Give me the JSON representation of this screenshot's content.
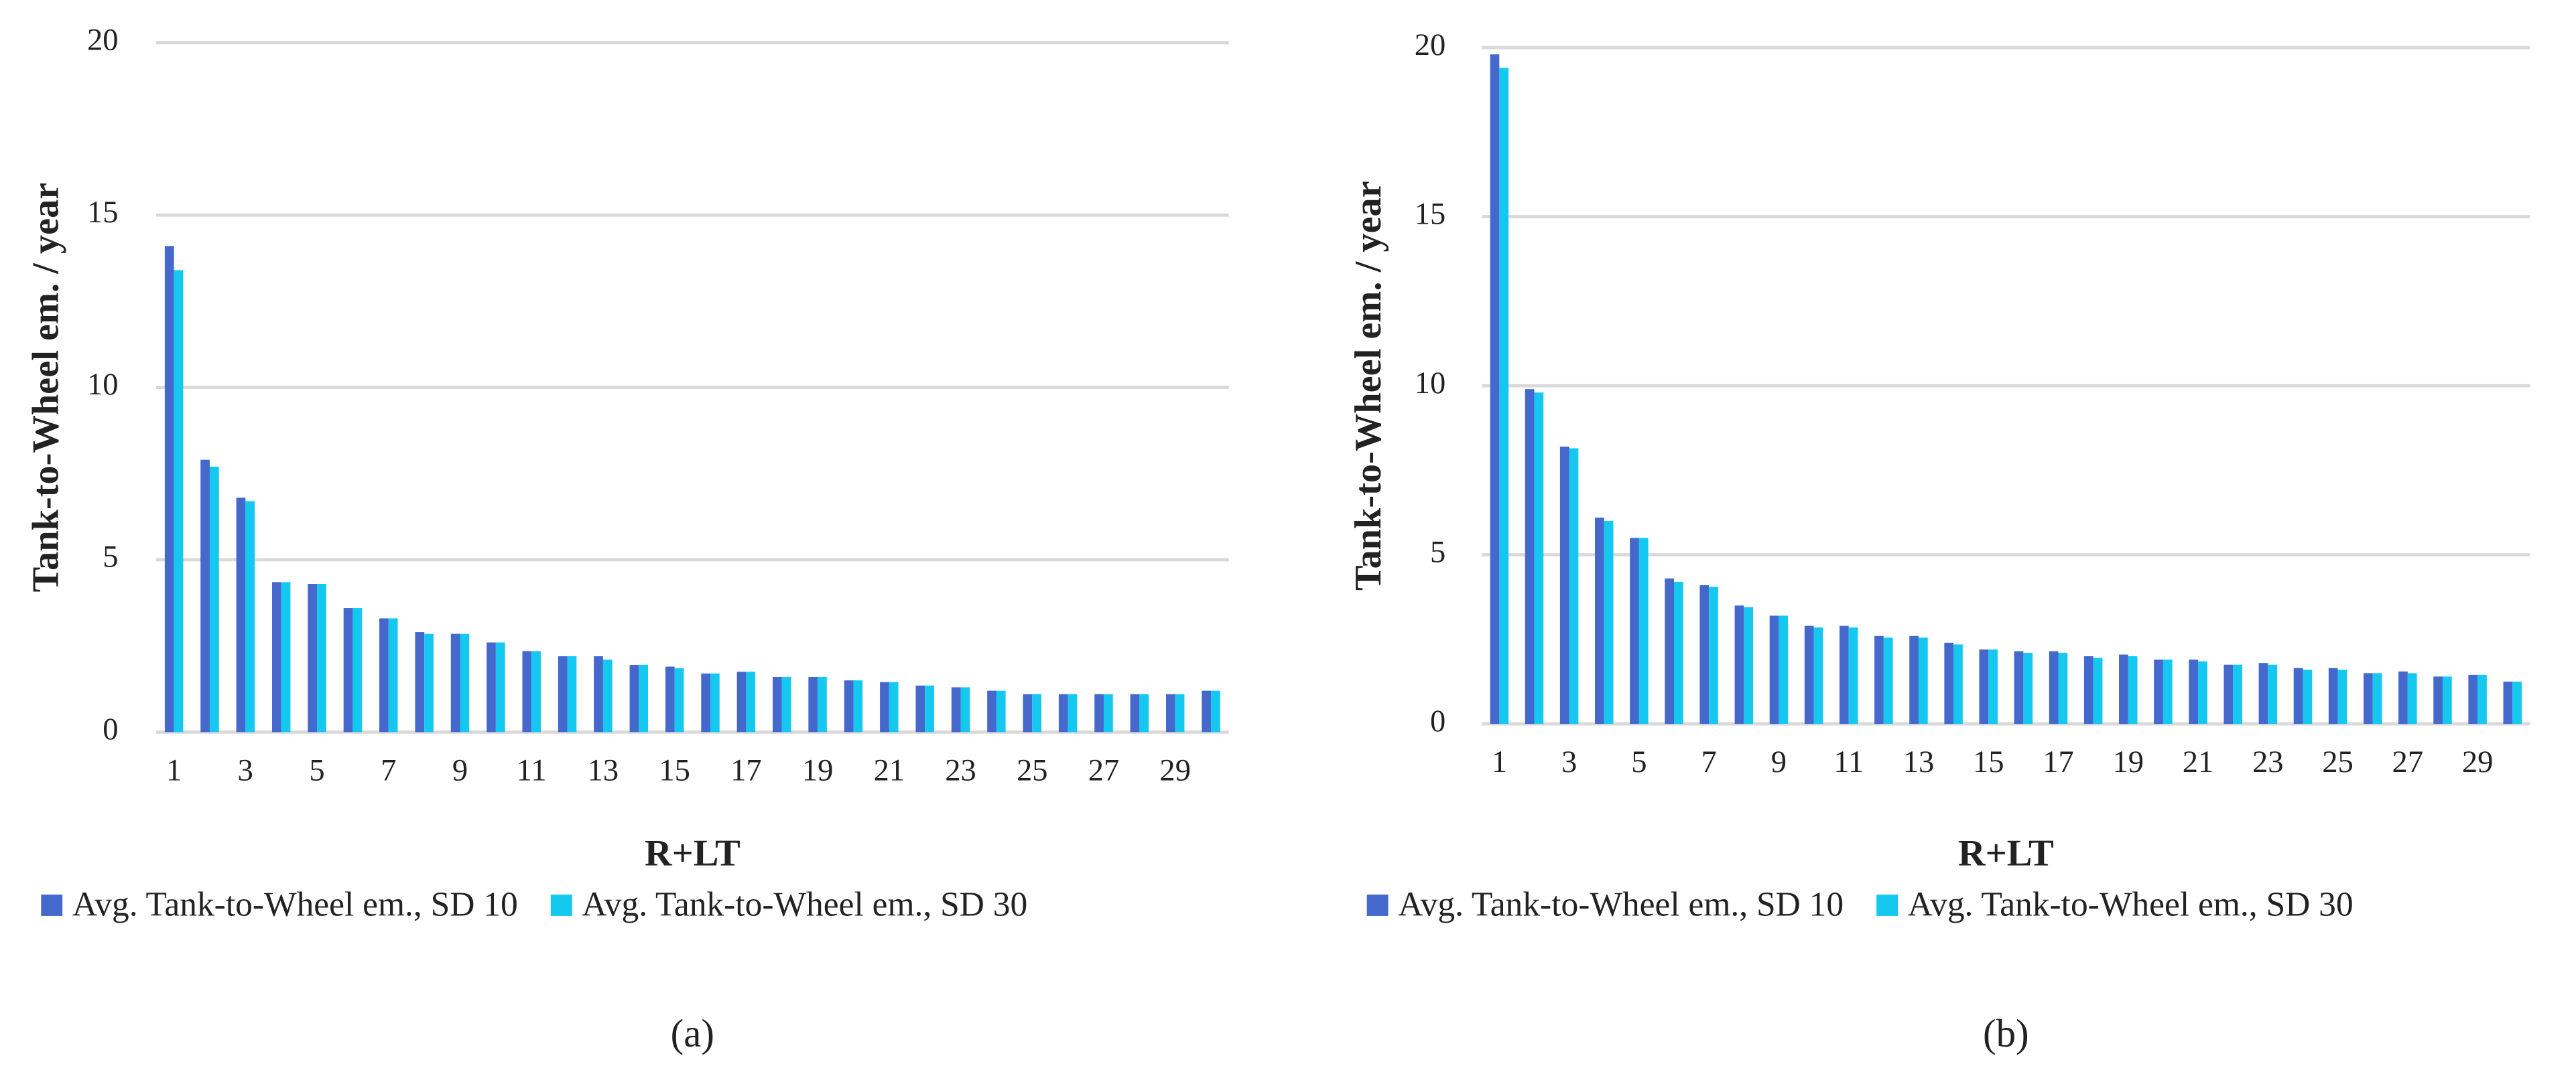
{
  "chart_data": [
    {
      "type": "bar",
      "caption": "(a)",
      "y_label": "Tank-to-Wheel em. / year",
      "x_label": "R+LT",
      "categories": [
        "1",
        null,
        "3",
        null,
        "5",
        null,
        "7",
        null,
        "9",
        null,
        "11",
        null,
        "13",
        null,
        "15",
        null,
        "17",
        null,
        "19",
        null,
        "21",
        null,
        "23",
        null,
        "25",
        null,
        "27",
        null,
        "29",
        null
      ],
      "series": [
        {
          "name": "Avg. Tank-to-Wheel em., SD 10",
          "color": "#4468cc",
          "values": [
            14.1,
            7.9,
            6.8,
            4.35,
            4.3,
            3.6,
            3.3,
            2.9,
            2.85,
            2.6,
            2.35,
            2.2,
            2.2,
            1.95,
            1.9,
            1.7,
            1.75,
            1.6,
            1.6,
            1.5,
            1.45,
            1.35,
            1.3,
            1.2,
            1.1,
            1.1,
            1.1,
            1.1,
            1.1,
            1.2
          ]
        },
        {
          "name": "Avg. Tank-to-Wheel em., SD 30",
          "color": "#14c8f0",
          "values": [
            13.4,
            7.7,
            6.7,
            4.35,
            4.3,
            3.6,
            3.3,
            2.85,
            2.85,
            2.6,
            2.35,
            2.2,
            2.1,
            1.95,
            1.85,
            1.7,
            1.75,
            1.6,
            1.6,
            1.5,
            1.45,
            1.35,
            1.3,
            1.2,
            1.1,
            1.1,
            1.1,
            1.1,
            1.1,
            1.2
          ]
        }
      ],
      "ylim": [
        0,
        20
      ],
      "yticks": [
        0,
        5,
        10,
        15,
        20
      ],
      "grid": true,
      "legend": "bottom"
    },
    {
      "type": "bar",
      "caption": "(b)",
      "y_label": "Tank-to-Wheel em. / year",
      "x_label": "R+LT",
      "categories": [
        "1",
        null,
        "3",
        null,
        "5",
        null,
        "7",
        null,
        "9",
        null,
        "11",
        null,
        "13",
        null,
        "15",
        null,
        "17",
        null,
        "19",
        null,
        "21",
        null,
        "23",
        null,
        "25",
        null,
        "27",
        null,
        "29",
        null
      ],
      "series": [
        {
          "name": "Avg. Tank-to-Wheel em., SD 10",
          "color": "#4468cc",
          "values": [
            19.8,
            9.9,
            8.2,
            6.1,
            5.5,
            4.3,
            4.1,
            3.5,
            3.2,
            2.9,
            2.9,
            2.6,
            2.6,
            2.4,
            2.2,
            2.15,
            2.15,
            2.0,
            2.05,
            1.9,
            1.9,
            1.75,
            1.8,
            1.65,
            1.65,
            1.5,
            1.55,
            1.4,
            1.45,
            1.25
          ]
        },
        {
          "name": "Avg. Tank-to-Wheel em., SD 30",
          "color": "#14c8f0",
          "values": [
            19.4,
            9.8,
            8.15,
            6.0,
            5.5,
            4.2,
            4.05,
            3.45,
            3.2,
            2.85,
            2.85,
            2.55,
            2.55,
            2.35,
            2.2,
            2.1,
            2.1,
            1.95,
            2.0,
            1.9,
            1.85,
            1.75,
            1.75,
            1.6,
            1.6,
            1.5,
            1.5,
            1.4,
            1.45,
            1.25
          ]
        }
      ],
      "ylim": [
        0,
        20
      ],
      "yticks": [
        0,
        5,
        10,
        15,
        20
      ],
      "grid": true,
      "legend": "bottom"
    }
  ]
}
